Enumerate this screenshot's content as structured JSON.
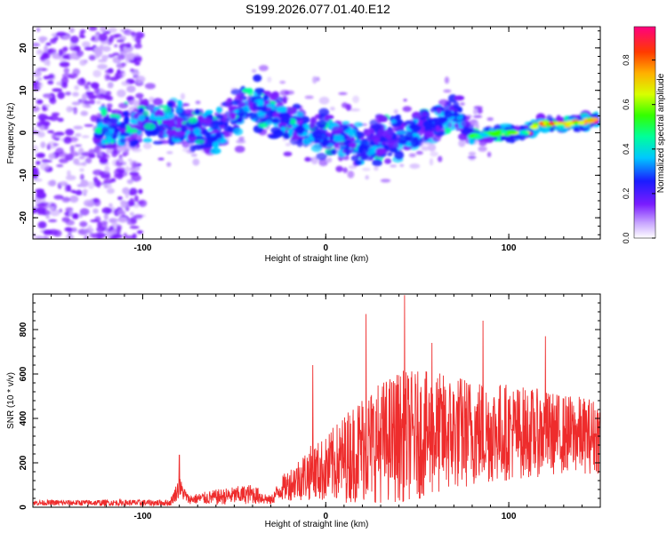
{
  "chart_data": [
    {
      "type": "heatmap",
      "title": "S199.2026.077.01.40.E12",
      "xlabel": "Height of straight line (km)",
      "ylabel": "Frequency (Hz)",
      "xlim": [
        -160,
        150
      ],
      "ylim": [
        -25,
        25
      ],
      "xticks": [
        -100,
        0,
        100
      ],
      "yticks": [
        -20,
        -10,
        0,
        10,
        20
      ],
      "colorbar": {
        "label": "Normalized spectral amplitude",
        "range": [
          0,
          0.95
        ],
        "ticks": [
          "0.0",
          "0.2",
          "0.4",
          "0.6",
          "0.8"
        ],
        "tick_values": [
          0,
          0.2,
          0.4,
          0.6,
          0.8
        ]
      },
      "ridge": [
        {
          "x": -120,
          "f": 0
        },
        {
          "x": -90,
          "f": 3
        },
        {
          "x": -60,
          "f": 0
        },
        {
          "x": -40,
          "f": 8
        },
        {
          "x": -20,
          "f": 2
        },
        {
          "x": 0,
          "f": 0
        },
        {
          "x": 20,
          "f": -3
        },
        {
          "x": 40,
          "f": -1
        },
        {
          "x": 60,
          "f": 2
        },
        {
          "x": 70,
          "f": 5
        },
        {
          "x": 80,
          "f": -1
        },
        {
          "x": 95,
          "f": 0
        },
        {
          "x": 110,
          "f": 0
        },
        {
          "x": 115,
          "f": 2
        },
        {
          "x": 130,
          "f": 2
        },
        {
          "x": 145,
          "f": 3
        }
      ]
    },
    {
      "type": "line",
      "xlabel": "Height of straight line (km)",
      "ylabel": "SNR (10 * v/v)",
      "xlim": [
        -160,
        150
      ],
      "ylim": [
        0,
        960
      ],
      "xticks": [
        -100,
        0,
        100
      ],
      "yticks": [
        0,
        200,
        400,
        600,
        800
      ],
      "series": [
        {
          "name": "SNR",
          "color": "#ee2c2c",
          "envelope": [
            {
              "x": -160,
              "mean": 20,
              "spread": 12
            },
            {
              "x": -85,
              "mean": 20,
              "spread": 15
            },
            {
              "x": -80,
              "mean": 90,
              "spread": 50
            },
            {
              "x": -75,
              "mean": 35,
              "spread": 20
            },
            {
              "x": -60,
              "mean": 45,
              "spread": 35
            },
            {
              "x": -40,
              "mean": 60,
              "spread": 45
            },
            {
              "x": -30,
              "mean": 30,
              "spread": 20
            },
            {
              "x": -25,
              "mean": 80,
              "spread": 50
            },
            {
              "x": -10,
              "mean": 150,
              "spread": 120
            },
            {
              "x": 0,
              "mean": 170,
              "spread": 150
            },
            {
              "x": 20,
              "mean": 270,
              "spread": 250
            },
            {
              "x": 40,
              "mean": 320,
              "spread": 300
            },
            {
              "x": 60,
              "mean": 330,
              "spread": 280
            },
            {
              "x": 80,
              "mean": 340,
              "spread": 250
            },
            {
              "x": 100,
              "mean": 340,
              "spread": 220
            },
            {
              "x": 130,
              "mean": 330,
              "spread": 180
            },
            {
              "x": 150,
              "mean": 320,
              "spread": 170
            }
          ],
          "peaks": [
            {
              "x": -80,
              "y": 235
            },
            {
              "x": -7,
              "y": 640
            },
            {
              "x": 22,
              "y": 870
            },
            {
              "x": 43,
              "y": 955
            },
            {
              "x": 58,
              "y": 740
            },
            {
              "x": 86,
              "y": 840
            },
            {
              "x": 120,
              "y": 770
            }
          ]
        }
      ]
    }
  ]
}
